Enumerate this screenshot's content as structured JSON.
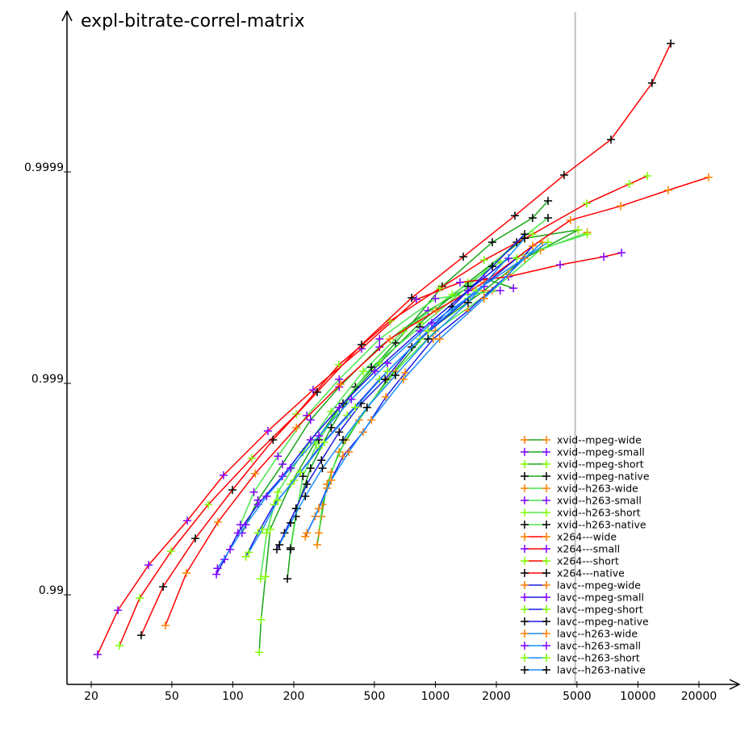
{
  "chart_data": {
    "type": "line",
    "title": "expl-bitrate-correl-matrix",
    "xlabel": "",
    "ylabel": "",
    "x_scale": "log",
    "y_scale": "log-nines",
    "xlim": [
      16,
      32000
    ],
    "ylim": [
      0.976,
      0.999983
    ],
    "x_ticks": [
      20,
      50,
      100,
      200,
      500,
      1000,
      2000,
      5000,
      10000,
      20000
    ],
    "x_tick_labels": [
      "20",
      "50",
      "100",
      "200",
      "500",
      "1000",
      "2000",
      "5000",
      "10000",
      "20000"
    ],
    "y_ticks": [
      0.99,
      0.999,
      0.9999
    ],
    "y_tick_labels": [
      "0.99",
      "0.999",
      "0.9999"
    ],
    "reference_line_x": 4900,
    "grid": false,
    "legend_position": "bottom-right",
    "line_colors": {
      "xvid-mpeg": "#1aa51a",
      "xvid-h263": "#4ce64c",
      "x264": "#ff0000",
      "lavc-mpeg": "#1a1ae6",
      "lavc-h263": "#1a8cff"
    },
    "marker_colors": {
      "wide": "#ff8000",
      "small": "#8000ff",
      "short": "#80ff00",
      "native": "#000000"
    },
    "series": [
      {
        "name": "xvid--mpeg-wide",
        "line": "xvid-mpeg",
        "marker": "wide",
        "points": [
          [
            261,
            0.9942
          ],
          [
            274,
            0.99574
          ],
          [
            292,
            0.997
          ],
          [
            335,
            0.99789
          ],
          [
            420,
            0.99851
          ],
          [
            580,
            0.999043
          ],
          [
            920,
            0.999435
          ],
          [
            1740,
            0.999636
          ],
          [
            2760,
            0.999744
          ],
          [
            5070,
            0.999812
          ]
        ]
      },
      {
        "name": "xvid--mpeg-small",
        "line": "xvid-mpeg",
        "marker": "small",
        "points": [
          [
            111,
            0.9949
          ],
          [
            133,
            0.99643
          ],
          [
            176,
            0.99759
          ],
          [
            242,
            0.99851
          ],
          [
            335,
            0.99896
          ],
          [
            530,
            0.999327
          ],
          [
            920,
            0.999547
          ],
          [
            1740,
            0.999681
          ],
          [
            2430,
            0.999645
          ]
        ]
      },
      {
        "name": "xvid--mpeg-short",
        "line": "xvid-mpeg",
        "marker": "short",
        "points": [
          [
            135,
            0.9813
          ],
          [
            138,
            0.9869
          ],
          [
            145,
            0.9918
          ],
          [
            153,
            0.9951
          ],
          [
            193,
            0.997
          ],
          [
            255,
            0.9981
          ],
          [
            335,
            0.9987
          ],
          [
            530,
            0.999197
          ],
          [
            840,
            0.999482
          ],
          [
            1450,
            0.999667
          ],
          [
            2760,
            0.999794
          ],
          [
            5070,
            0.999812
          ]
        ]
      },
      {
        "name": "xvid--mpeg-native",
        "line": "xvid-mpeg",
        "marker": "native",
        "points": [
          [
            186,
            0.9916
          ],
          [
            193,
            0.994
          ],
          [
            207,
            0.99609
          ],
          [
            242,
            0.99748
          ],
          [
            306,
            0.99838
          ],
          [
            403,
            0.99896
          ],
          [
            635,
            0.999356
          ],
          [
            1080,
            0.999652
          ],
          [
            1910,
            0.999785
          ],
          [
            3020,
            0.999835
          ],
          [
            3600,
            0.999863
          ]
        ]
      },
      {
        "name": "xvid--h263-wide",
        "line": "xvid-h263",
        "marker": "wide",
        "points": [
          [
            266,
            0.9949
          ],
          [
            277,
            0.99626
          ],
          [
            306,
            0.99737
          ],
          [
            360,
            0.99815
          ],
          [
            460,
            0.9987
          ],
          [
            635,
            0.999123
          ],
          [
            1000,
            0.999435
          ],
          [
            1910,
            0.999636
          ],
          [
            3300,
            0.999766
          ],
          [
            5620,
            0.999807
          ]
        ]
      },
      {
        "name": "xvid--h263-small",
        "line": "xvid-h263",
        "marker": "small",
        "points": [
          [
            109,
            0.99534
          ],
          [
            127,
            0.99673
          ],
          [
            167,
            0.99779
          ],
          [
            232,
            0.99858
          ],
          [
            335,
            0.999043
          ],
          [
            530,
            0.999383
          ],
          [
            1000,
            0.999603
          ],
          [
            2090,
            0.999636
          ]
        ]
      },
      {
        "name": "xvid--h263-short",
        "line": "xvid-h263",
        "marker": "short",
        "points": [
          [
            137,
            0.9916
          ],
          [
            147,
            0.9949
          ],
          [
            167,
            0.99673
          ],
          [
            222,
            0.99789
          ],
          [
            306,
            0.99864
          ],
          [
            440,
            0.999123
          ],
          [
            695,
            0.999435
          ],
          [
            1210,
            0.99962
          ],
          [
            2090,
            0.999733
          ],
          [
            5620,
            0.999803
          ]
        ]
      },
      {
        "name": "xvid--h263-native",
        "line": "xvid-h263",
        "marker": "native",
        "points": [
          [
            193,
            0.9939
          ],
          [
            205,
            0.99574
          ],
          [
            222,
            0.99725
          ],
          [
            266,
            0.99815
          ],
          [
            350,
            0.998755
          ],
          [
            483,
            0.999161
          ],
          [
            840,
            0.999459
          ],
          [
            1450,
            0.999652
          ],
          [
            2520,
            0.999785
          ],
          [
            3600,
            0.999835
          ]
        ]
      },
      {
        "name": "x264---wide",
        "line": "x264",
        "marker": "wide",
        "points": [
          [
            46.5,
            0.98604
          ],
          [
            59,
            0.99211
          ],
          [
            84.4,
            0.99547
          ],
          [
            129,
            0.99733
          ],
          [
            206,
            0.99838
          ],
          [
            340,
            0.998991
          ],
          [
            596,
            0.999383
          ],
          [
            1005,
            0.999547
          ],
          [
            1742,
            0.999667
          ],
          [
            3020,
            0.999776
          ],
          [
            4650,
            0.999831
          ],
          [
            8220,
            0.999855
          ],
          [
            14120,
            0.999878
          ],
          [
            22300,
            0.999894
          ]
        ]
      },
      {
        "name": "x264---small",
        "line": "x264",
        "marker": "small",
        "points": [
          [
            21.5,
            0.98086
          ],
          [
            27.1,
            0.98817
          ],
          [
            38.4,
            0.99277
          ],
          [
            59.6,
            0.99554
          ],
          [
            90,
            0.99728
          ],
          [
            149,
            0.99832
          ],
          [
            249,
            0.998926
          ],
          [
            432,
            0.999314
          ],
          [
            806,
            0.999599
          ],
          [
            1324,
            0.999667
          ],
          [
            2296,
            0.999687
          ],
          [
            4130,
            0.999725
          ],
          [
            6780,
            0.999748
          ],
          [
            8300,
            0.999759
          ]
        ]
      },
      {
        "name": "x264---short",
        "line": "x264",
        "marker": "short",
        "points": [
          [
            27.6,
            0.98262
          ],
          [
            34.7,
            0.98964
          ],
          [
            49.6,
            0.99378
          ],
          [
            75.7,
            0.99626
          ],
          [
            124,
            0.99774
          ],
          [
            206,
            0.9986
          ],
          [
            334,
            0.999183
          ],
          [
            596,
            0.999492
          ],
          [
            1052,
            0.999645
          ],
          [
            1742,
            0.999739
          ],
          [
            3020,
            0.999803
          ],
          [
            5580,
            0.999859
          ],
          [
            9080,
            0.999886
          ],
          [
            11120,
            0.9998955
          ]
        ]
      },
      {
        "name": "x264---native",
        "line": "x264",
        "marker": "native",
        "points": [
          [
            35.3,
            0.98447
          ],
          [
            45.3,
            0.99084
          ],
          [
            65.3,
            0.99459
          ],
          [
            99.6,
            0.99681
          ],
          [
            158,
            0.99815
          ],
          [
            261,
            0.9989
          ],
          [
            432,
            0.999344
          ],
          [
            764,
            0.999606
          ],
          [
            1374,
            0.999748
          ],
          [
            2470,
            0.999839
          ],
          [
            4320,
            0.9998965
          ],
          [
            7360,
            0.9999297
          ],
          [
            11740,
            0.999962
          ],
          [
            14520,
            0.9999753
          ]
        ]
      },
      {
        "name": "lavc--mpeg-wide",
        "line": "lavc-mpeg",
        "marker": "wide",
        "points": [
          [
            228,
            0.9947
          ],
          [
            255,
            0.99574
          ],
          [
            292,
            0.99687
          ],
          [
            350,
            0.99779
          ],
          [
            440,
            0.9983
          ],
          [
            570,
            0.99884
          ],
          [
            710,
            0.999109
          ],
          [
            975,
            0.999383
          ],
          [
            1450,
            0.999547
          ],
          [
            2300,
            0.999695
          ],
          [
            3020,
            0.999776
          ]
        ]
      },
      {
        "name": "lavc--mpeg-small",
        "line": "lavc-mpeg",
        "marker": "small",
        "points": [
          [
            83,
            0.992
          ],
          [
            91,
            0.9932
          ],
          [
            106,
            0.9949
          ],
          [
            133,
            0.99626
          ],
          [
            176,
            0.99725
          ],
          [
            242,
            0.99815
          ],
          [
            335,
            0.9987
          ],
          [
            503,
            0.999123
          ],
          [
            840,
            0.999435
          ],
          [
            1450,
            0.999636
          ],
          [
            2300,
            0.999744
          ]
        ]
      },
      {
        "name": "lavc--mpeg-short",
        "line": "lavc-mpeg",
        "marker": "short",
        "points": [
          [
            116,
            0.9934
          ],
          [
            133,
            0.9949
          ],
          [
            160,
            0.99626
          ],
          [
            201,
            0.99713
          ],
          [
            266,
            0.99798
          ],
          [
            367,
            0.99858
          ],
          [
            530,
            0.999043
          ],
          [
            840,
            0.999383
          ],
          [
            1450,
            0.999603
          ],
          [
            2520,
            0.999744
          ]
        ]
      },
      {
        "name": "lavc--mpeg-native",
        "line": "lavc-mpeg",
        "marker": "native",
        "points": [
          [
            165,
            0.9939
          ],
          [
            180,
            0.9949
          ],
          [
            205,
            0.99609
          ],
          [
            232,
            0.997
          ],
          [
            274,
            0.99769
          ],
          [
            335,
            0.9983
          ],
          [
            430,
            0.998755
          ],
          [
            565,
            0.999043
          ],
          [
            764,
            0.999327
          ],
          [
            1210,
            0.999566
          ],
          [
            1910,
            0.99972
          ],
          [
            2760,
            0.999803
          ]
        ]
      },
      {
        "name": "lavc--h263-wide",
        "line": "lavc-h263",
        "marker": "wide",
        "points": [
          [
            232,
            0.9949
          ],
          [
            266,
            0.99609
          ],
          [
            306,
            0.99713
          ],
          [
            374,
            0.99789
          ],
          [
            483,
            0.99851
          ],
          [
            695,
            0.999043
          ],
          [
            1050,
            0.999383
          ],
          [
            1740,
            0.999603
          ],
          [
            2760,
            0.999744
          ],
          [
            3370,
            0.999785
          ]
        ]
      },
      {
        "name": "lavc--h263-small",
        "line": "lavc-h263",
        "marker": "small",
        "points": [
          [
            84,
            0.9925
          ],
          [
            97,
            0.9939
          ],
          [
            116,
            0.99534
          ],
          [
            147,
            0.99658
          ],
          [
            193,
            0.99748
          ],
          [
            266,
            0.99823
          ],
          [
            385,
            0.99881
          ],
          [
            580,
            0.999197
          ],
          [
            960,
            0.999482
          ],
          [
            1740,
            0.999652
          ]
        ]
      },
      {
        "name": "lavc--h263-short",
        "line": "lavc-h263",
        "marker": "short",
        "points": [
          [
            120,
            0.9937
          ],
          [
            140,
            0.9951
          ],
          [
            167,
            0.99643
          ],
          [
            216,
            0.99737
          ],
          [
            283,
            0.9981
          ],
          [
            403,
            0.9987
          ],
          [
            580,
            0.999123
          ],
          [
            920,
            0.999435
          ],
          [
            1590,
            0.999636
          ],
          [
            3600,
            0.999785
          ]
        ]
      },
      {
        "name": "lavc--h263-native",
        "line": "lavc-h263",
        "marker": "native",
        "points": [
          [
            170,
            0.9942
          ],
          [
            193,
            0.99543
          ],
          [
            228,
            0.99658
          ],
          [
            277,
            0.99748
          ],
          [
            350,
            0.99815
          ],
          [
            460,
            0.9987
          ],
          [
            635,
            0.999084
          ],
          [
            920,
            0.999383
          ],
          [
            1450,
            0.999585
          ],
          [
            2760,
            0.999794
          ]
        ]
      }
    ]
  }
}
